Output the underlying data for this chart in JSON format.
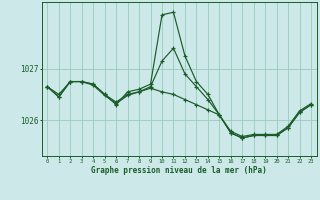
{
  "background_color": "#cce8e8",
  "grid_color": "#99ccbb",
  "line_color": "#1a5c2a",
  "xlabel": "Graphe pression niveau de la mer (hPa)",
  "yticks": [
    1026,
    1027
  ],
  "ylim": [
    1025.3,
    1028.3
  ],
  "xlim": [
    -0.5,
    23.5
  ],
  "series1": [
    1026.65,
    1026.45,
    1026.75,
    1026.75,
    1026.7,
    1026.5,
    1026.3,
    1026.55,
    1026.6,
    1026.7,
    1028.05,
    1028.1,
    1027.25,
    1026.75,
    1026.5,
    1026.1,
    1025.75,
    1025.65,
    1025.7,
    1025.7,
    1025.7,
    1025.85,
    1026.15,
    1026.3
  ],
  "series2": [
    1026.65,
    1026.5,
    1026.75,
    1026.75,
    1026.7,
    1026.5,
    1026.35,
    1026.5,
    1026.55,
    1026.65,
    1027.15,
    1027.4,
    1026.9,
    1026.65,
    1026.4,
    1026.1,
    1025.75,
    1025.65,
    1025.7,
    1025.7,
    1025.7,
    1025.85,
    1026.15,
    1026.3
  ],
  "series3": [
    1026.65,
    1026.45,
    1026.75,
    1026.75,
    1026.68,
    1026.48,
    1026.32,
    1026.48,
    1026.55,
    1026.62,
    1026.55,
    1026.5,
    1026.4,
    1026.3,
    1026.2,
    1026.1,
    1025.78,
    1025.68,
    1025.72,
    1025.72,
    1025.72,
    1025.88,
    1026.18,
    1026.32
  ],
  "figsize": [
    3.2,
    2.0
  ],
  "dpi": 100
}
